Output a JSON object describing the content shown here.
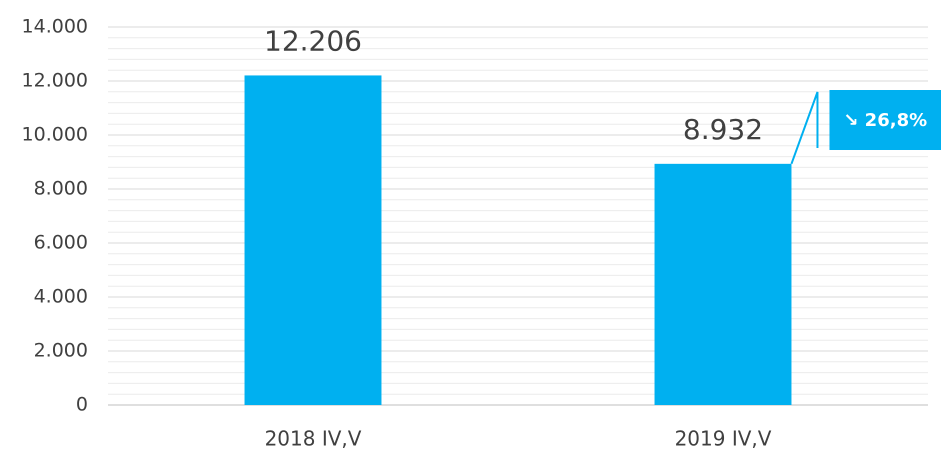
{
  "chart_data": {
    "type": "bar",
    "categories": [
      "2018 IV,V",
      "2019 IV,V"
    ],
    "values": [
      12206,
      8932
    ],
    "value_labels": [
      "12.206",
      "8.932"
    ],
    "color": "#00b0f0",
    "ylim": [
      0,
      14000
    ],
    "yticks": [
      0,
      {
        "value": 2000,
        "label": "2.000"
      },
      {
        "value": 4000,
        "label": "4.000"
      },
      {
        "value": 6000,
        "label": "6.000"
      },
      {
        "value": 8000,
        "label": "8.000"
      },
      {
        "value": 10000,
        "label": "10.000"
      },
      {
        "value": 12000,
        "label": "12.000"
      },
      {
        "value": 14000,
        "label": "14.000"
      }
    ],
    "grid": true,
    "annotation": "↘ 26,8%"
  }
}
